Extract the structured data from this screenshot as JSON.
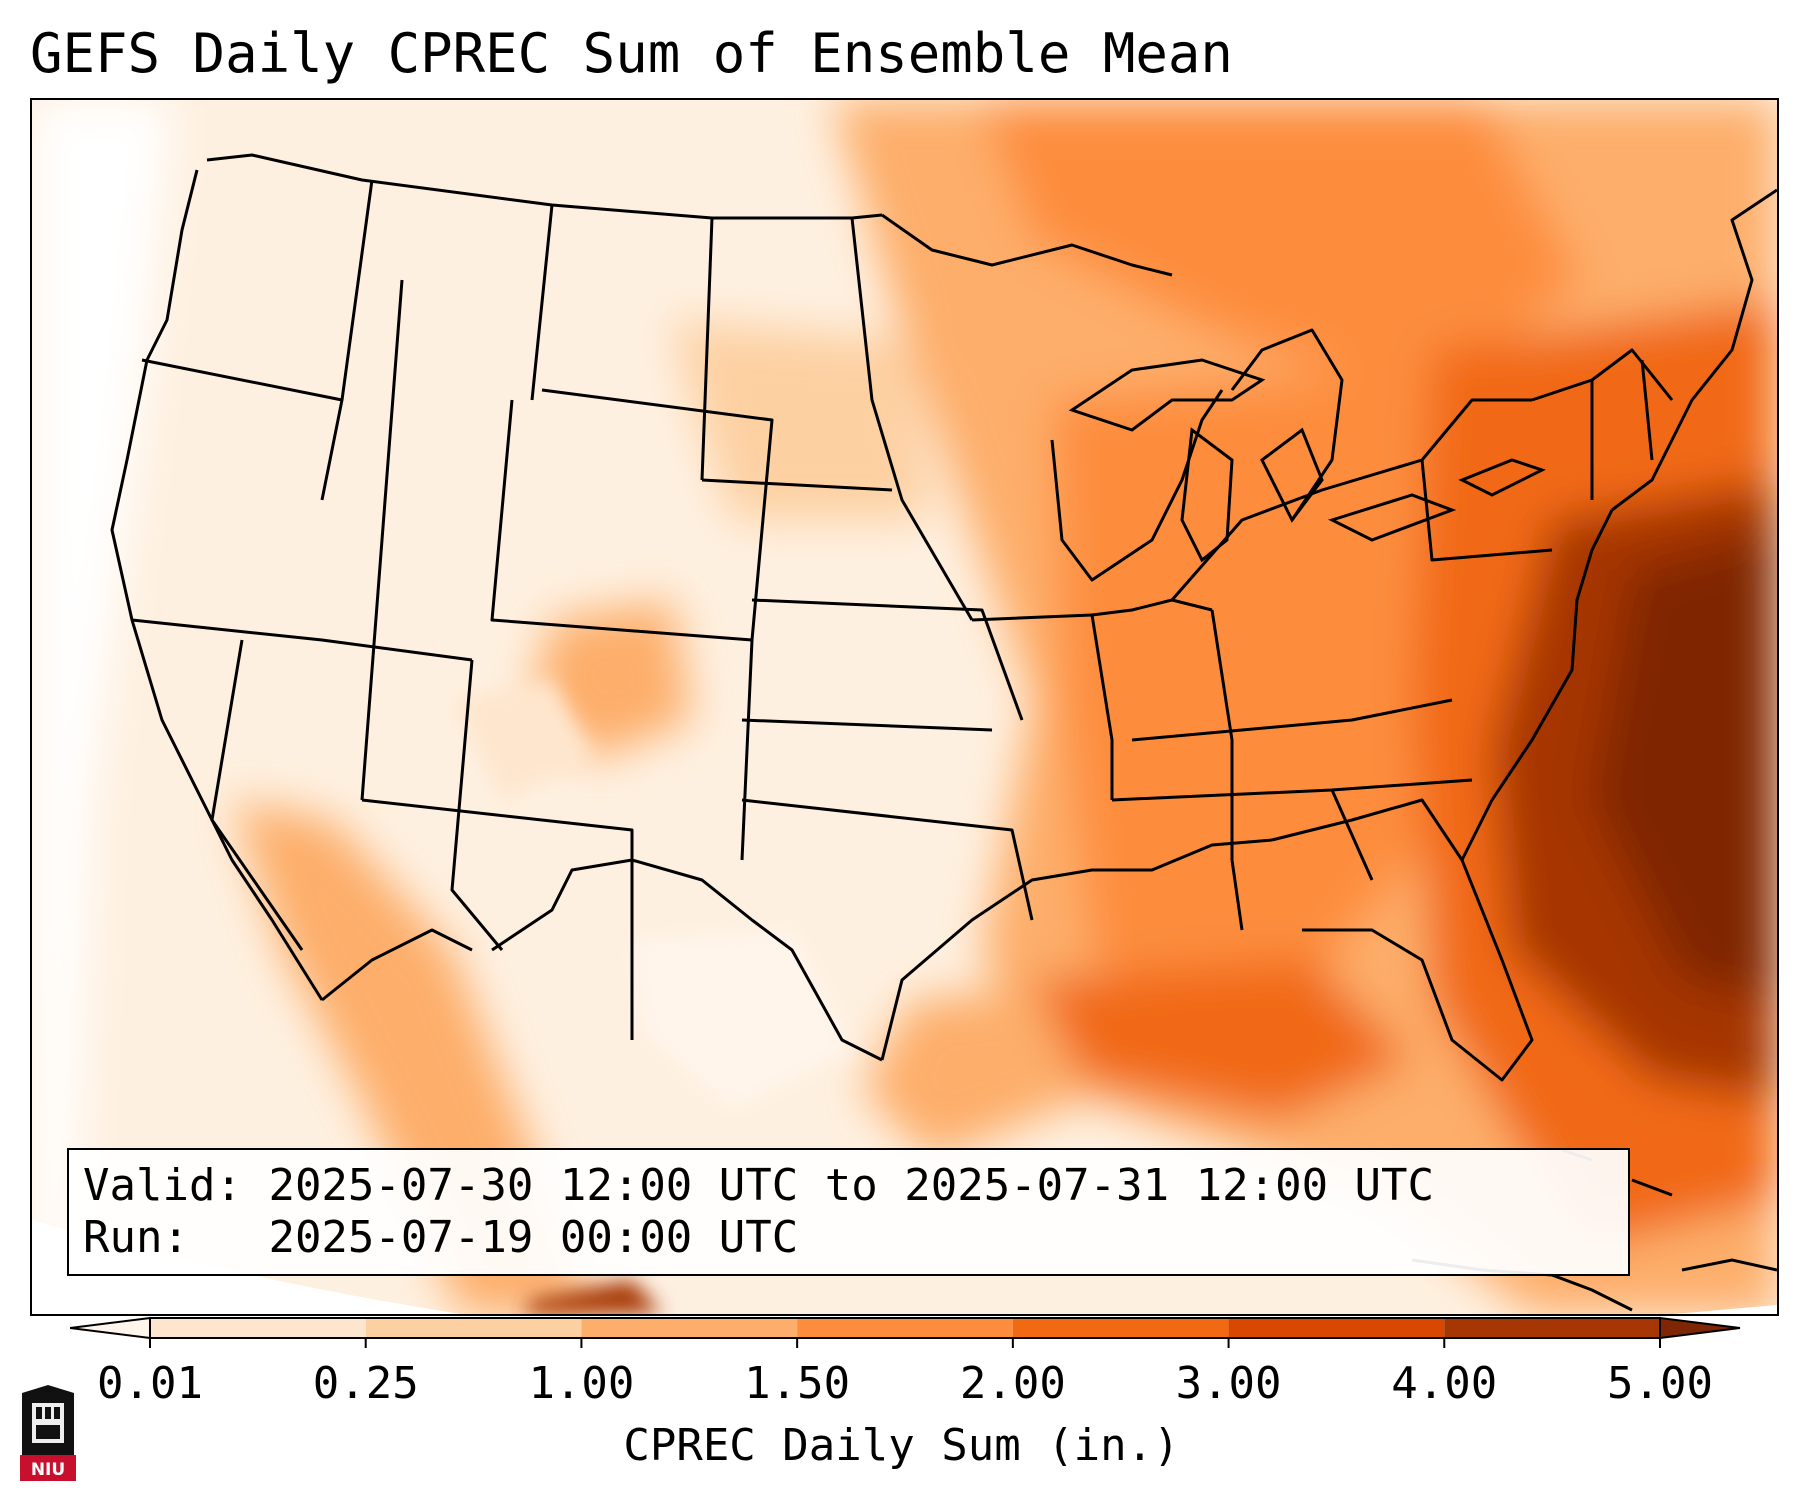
{
  "title": "GEFS Daily CPREC Sum of Ensemble Mean",
  "info": {
    "valid_label": "Valid:",
    "valid_value": "2025-07-30 12:00 UTC to 2025-07-31 12:00 UTC",
    "run_label": "Run:",
    "run_value": "2025-07-19 00:00 UTC"
  },
  "colorbar": {
    "label": "CPREC Daily Sum (in.)",
    "ticks": [
      "0.01",
      "0.25",
      "1.00",
      "1.50",
      "2.00",
      "3.00",
      "4.00",
      "5.00"
    ],
    "colors": [
      "#fff5eb",
      "#fee6ce",
      "#fdd0a2",
      "#fdae6b",
      "#fd8d3c",
      "#f16913",
      "#d94801",
      "#a63603",
      "#7f2704"
    ],
    "extend": "both"
  },
  "legend_colors": {
    "low": "#fff5eb",
    "very_high": "#7f2704"
  },
  "logo": {
    "text": "NIU",
    "color": "#c8102e"
  }
}
